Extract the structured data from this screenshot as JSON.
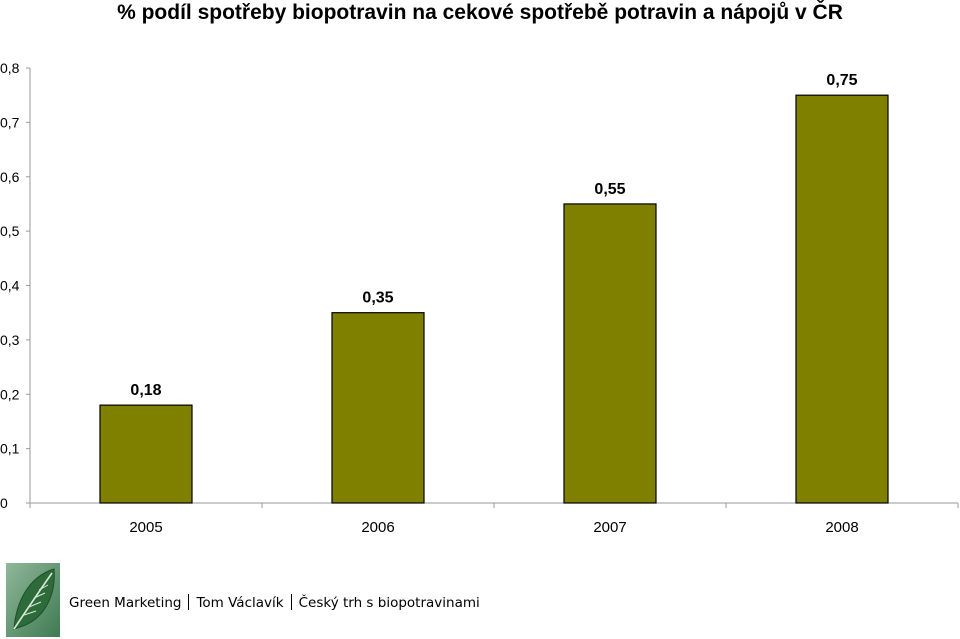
{
  "chart_data": {
    "type": "bar",
    "title": "% podíl spotřeby biopotravin na cekové spotřebě potravin a nápojů v ČR",
    "categories": [
      "2005",
      "2006",
      "2007",
      "2008"
    ],
    "values": [
      0.18,
      0.35,
      0.55,
      0.75
    ],
    "data_labels": [
      "0,18",
      "0,35",
      "0,55",
      "0,75"
    ],
    "y_ticks": [
      0,
      0.1,
      0.2,
      0.3,
      0.4,
      0.5,
      0.6,
      0.7,
      0.8
    ],
    "y_tick_labels": [
      "0",
      "0,1",
      "0,2",
      "0,3",
      "0,4",
      "0,5",
      "0,6",
      "0,7",
      "0,8"
    ],
    "ylim": [
      0,
      0.8
    ],
    "xlabel": "",
    "ylabel": "",
    "grid": false,
    "legend": "none",
    "bar_color": "#808000",
    "bar_border_color": "#000000"
  },
  "footer": {
    "logo_icon": "leaf-logo",
    "parts": [
      "Green Marketing",
      "Tom Václavík",
      "Český trh s biopotravinami"
    ],
    "logo_bg_color": "#5a8f6a",
    "leaf_color": "#2e6b3a"
  }
}
